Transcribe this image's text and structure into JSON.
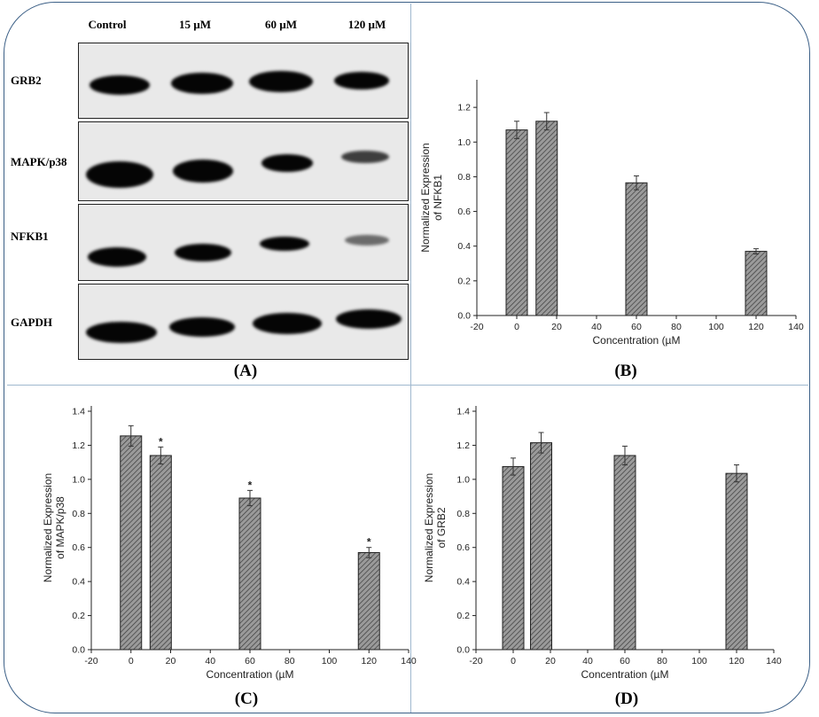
{
  "western_blot": {
    "lanes": [
      "Control",
      "15 µM",
      "60 µM",
      "120 µM"
    ],
    "proteins": [
      "GRB2",
      "MAPK/p38",
      "NFKB1",
      "GAPDH"
    ],
    "label": "(A)"
  },
  "panel_labels": {
    "b": "(B)",
    "c": "(C)",
    "d": "(D)"
  },
  "chart_data": [
    {
      "type": "bar",
      "panel": "(B)",
      "x": [
        0,
        15,
        60,
        120
      ],
      "values": [
        1.07,
        1.12,
        0.765,
        0.37
      ],
      "errors": [
        0.05,
        0.05,
        0.04,
        0.015
      ],
      "significance": [
        "",
        "",
        "",
        ""
      ],
      "xlabel": "Concentration (µM",
      "ylabel_lines": [
        "Normalized Expression",
        "of NFKB1"
      ],
      "xlim": [
        -20,
        140
      ],
      "ylim": [
        0,
        1.4
      ],
      "xticks": [
        -20,
        0,
        20,
        40,
        60,
        80,
        100,
        120,
        140
      ],
      "yticks": [
        "0.0",
        "0.2",
        "0.4",
        "0.6",
        "0.8",
        "1.0",
        "1.2"
      ],
      "bar_fill": "#8c8c8c"
    },
    {
      "type": "bar",
      "panel": "(C)",
      "x": [
        0,
        15,
        60,
        120
      ],
      "values": [
        1.255,
        1.14,
        0.89,
        0.57
      ],
      "errors": [
        0.06,
        0.05,
        0.045,
        0.03
      ],
      "significance": [
        "",
        "*",
        "*",
        "*"
      ],
      "xlabel": "Concentration (µM",
      "ylabel_lines": [
        "Normalized Expression",
        "of MAPK/p38"
      ],
      "xlim": [
        -20,
        140
      ],
      "ylim": [
        0,
        1.4
      ],
      "xticks": [
        -20,
        0,
        20,
        40,
        60,
        80,
        100,
        120,
        140
      ],
      "yticks": [
        "0.0",
        "0.2",
        "0.4",
        "0.6",
        "0.8",
        "1.0",
        "1.2",
        "1.4"
      ],
      "bar_fill": "#8c8c8c"
    },
    {
      "type": "bar",
      "panel": "(D)",
      "x": [
        0,
        15,
        60,
        120
      ],
      "values": [
        1.075,
        1.215,
        1.14,
        1.035
      ],
      "errors": [
        0.05,
        0.06,
        0.055,
        0.05
      ],
      "significance": [
        "",
        "",
        "",
        ""
      ],
      "xlabel": "Concentration (µM",
      "ylabel_lines": [
        "Normalized Expression",
        "of GRB2"
      ],
      "xlim": [
        -20,
        140
      ],
      "ylim": [
        0,
        1.4
      ],
      "xticks": [
        -20,
        0,
        20,
        40,
        60,
        80,
        100,
        120,
        140
      ],
      "yticks": [
        "0.0",
        "0.2",
        "0.4",
        "0.6",
        "0.8",
        "1.0",
        "1.2",
        "1.4"
      ],
      "bar_fill": "#8c8c8c"
    }
  ]
}
